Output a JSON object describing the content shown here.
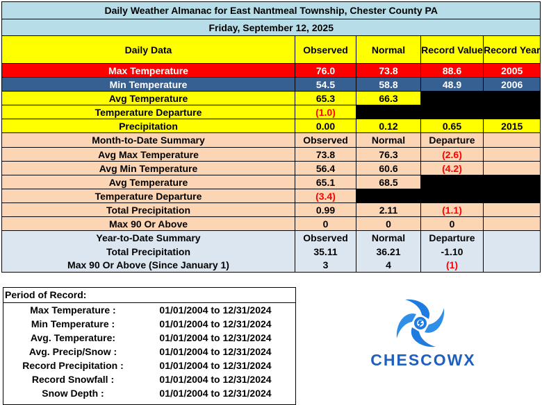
{
  "title": "Daily Weather Almanac for East Nantmeal Township, Chester County PA",
  "date": "Friday, September 12, 2025",
  "daily": {
    "headers": [
      "Daily Data",
      "Observed",
      "Normal",
      "Record Value",
      "Record Year"
    ],
    "max_temp": {
      "label": "Max Temperature",
      "observed": "76.0",
      "normal": "73.8",
      "record_value": "88.6",
      "record_year": "2005"
    },
    "min_temp": {
      "label": "Min Temperature",
      "observed": "54.5",
      "normal": "58.8",
      "record_value": "48.9",
      "record_year": "2006"
    },
    "avg_temp": {
      "label": "Avg Temperature",
      "observed": "65.3",
      "normal": "66.3"
    },
    "temp_departure": {
      "label": "Temperature Departure",
      "observed": "(1.0)"
    },
    "precip": {
      "label": "Precipitation",
      "observed": "0.00",
      "normal": "0.12",
      "record_value": "0.65",
      "record_year": "2015"
    }
  },
  "mtd": {
    "headers": [
      "Month-to-Date Summary",
      "Observed",
      "Normal",
      "Departure"
    ],
    "rows": [
      {
        "label": "Avg Max Temperature",
        "observed": "73.8",
        "normal": "76.3",
        "departure": "(2.6)"
      },
      {
        "label": "Avg Min Temperature",
        "observed": "56.4",
        "normal": "60.6",
        "departure": "(4.2)"
      },
      {
        "label": "Avg Temperature",
        "observed": "65.1",
        "normal": "68.5"
      },
      {
        "label": "Temperature Departure",
        "observed": "(3.4)"
      },
      {
        "label": "Total Precipitation",
        "observed": "0.99",
        "normal": "2.11",
        "departure": "(1.1)"
      },
      {
        "label": "Max 90 Or Above",
        "observed": "0",
        "normal": "0",
        "departure": "0"
      }
    ]
  },
  "ytd": {
    "headers": [
      "Year-to-Date Summary",
      "Observed",
      "Normal",
      "Departure"
    ],
    "rows": [
      {
        "label": "Total Precipitation",
        "observed": "35.11",
        "normal": "36.21",
        "departure": "-1.10"
      },
      {
        "label": "Max 90 Or Above (Since January 1)",
        "observed": "3",
        "normal": "4",
        "departure": "(1)"
      }
    ]
  },
  "period_of_record": {
    "heading": "Period of Record:",
    "rows": [
      {
        "label": "Max Temperature :",
        "value": "01/01/2004 to 12/31/2024"
      },
      {
        "label": "Min Temperature :",
        "value": "01/01/2004 to 12/31/2024"
      },
      {
        "label": "Avg. Temperature:",
        "value": "01/01/2004 to 12/31/2024"
      },
      {
        "label": "Avg. Precip/Snow :",
        "value": "01/01/2004 to 12/31/2024"
      },
      {
        "label": "Record Precipitation :",
        "value": "01/01/2004 to 12/31/2024"
      },
      {
        "label": "Record Snowfall :",
        "value": "01/01/2004 to 12/31/2024"
      },
      {
        "label": "Snow Depth :",
        "value": "01/01/2004 to 12/31/2024"
      }
    ]
  },
  "logo": {
    "text": "CHESCOWX",
    "icon": "hurricane-swirl-icon",
    "text_color": "#1f5fbf",
    "icon_color": "#1e7be0"
  },
  "colors": {
    "title_bg": "#b7dee8",
    "header_bg": "#ffff00",
    "max_bg": "#ff0000",
    "min_bg": "#366092",
    "mtd_bg": "#fcd5b4",
    "ytd_bg": "#dce6f1",
    "negative_text": "#ff0000"
  }
}
